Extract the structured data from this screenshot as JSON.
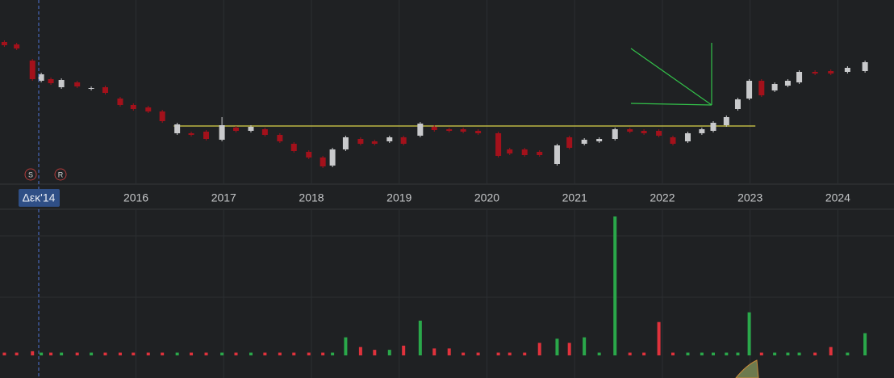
{
  "chart_data": {
    "type": "candlestick",
    "x": [
      2014.5,
      2014.64,
      2014.82,
      2014.92,
      2015.03,
      2015.15,
      2015.33,
      2015.49,
      2015.65,
      2015.82,
      2015.97,
      2016.14,
      2016.3,
      2016.47,
      2016.63,
      2016.8,
      2016.98,
      2017.14,
      2017.31,
      2017.47,
      2017.64,
      2017.8,
      2017.97,
      2018.13,
      2018.24,
      2018.39,
      2018.56,
      2018.72,
      2018.89,
      2019.05,
      2019.24,
      2019.4,
      2019.57,
      2019.73,
      2019.9,
      2020.13,
      2020.26,
      2020.43,
      2020.6,
      2020.8,
      2020.94,
      2021.11,
      2021.28,
      2021.46,
      2021.63,
      2021.79,
      2021.96,
      2022.12,
      2022.29,
      2022.45,
      2022.58,
      2022.73,
      2022.86,
      2022.99,
      2023.13,
      2023.28,
      2023.43,
      2023.56,
      2023.74,
      2023.92,
      2024.11,
      2024.31
    ],
    "open": [
      178,
      175,
      155,
      130,
      132,
      122,
      128,
      120,
      122,
      108,
      100,
      97,
      92,
      65,
      65,
      67,
      57,
      72,
      68,
      70,
      63,
      52,
      42,
      35,
      25,
      45,
      58,
      55,
      55,
      60,
      62,
      73,
      70,
      70,
      68,
      65,
      45,
      45,
      42,
      27,
      60,
      52,
      55,
      58,
      70,
      68,
      68,
      60,
      55,
      65,
      68,
      75,
      95,
      108,
      130,
      118,
      124,
      128,
      141,
      142,
      141,
      142
    ],
    "high": [
      180,
      177,
      157,
      140,
      134,
      133,
      130,
      123,
      124,
      110,
      102,
      99,
      94,
      78,
      67,
      69,
      85,
      74,
      75,
      72,
      65,
      54,
      44,
      37,
      47,
      62,
      60,
      57,
      62,
      62,
      79,
      75,
      72,
      72,
      70,
      67,
      47,
      47,
      44,
      52,
      62,
      59,
      60,
      72,
      72,
      70,
      70,
      62,
      67,
      72,
      80,
      87,
      109,
      132,
      132,
      128,
      132,
      143,
      143,
      144,
      148,
      155
    ],
    "low": [
      172,
      168,
      130,
      128,
      125,
      120,
      121,
      118,
      113,
      98,
      93,
      90,
      78,
      63,
      61,
      56,
      55,
      66,
      66,
      61,
      53,
      41,
      33,
      22,
      23,
      43,
      50,
      50,
      53,
      50,
      60,
      67,
      66,
      65,
      63,
      35,
      38,
      36,
      36,
      25,
      45,
      50,
      53,
      56,
      65,
      63,
      60,
      50,
      53,
      63,
      66,
      73,
      93,
      106,
      110,
      116,
      122,
      126,
      137,
      137,
      139,
      140
    ],
    "close": [
      174,
      170,
      132,
      138,
      127,
      131,
      123,
      121,
      115,
      100,
      95,
      92,
      80,
      76,
      63,
      58,
      75,
      68,
      73,
      63,
      55,
      43,
      35,
      24,
      45,
      60,
      52,
      52,
      60,
      52,
      77,
      69,
      68,
      67,
      65,
      37,
      40,
      38,
      38,
      50,
      47,
      57,
      58,
      70,
      67,
      65,
      62,
      52,
      65,
      70,
      78,
      85,
      107,
      130,
      112,
      126,
      130,
      141,
      139,
      139,
      146,
      153
    ],
    "volume": [
      2,
      2,
      3,
      2,
      2,
      2,
      2,
      2,
      2,
      2,
      2,
      2,
      2,
      2,
      2,
      2,
      2,
      2,
      2,
      2,
      2,
      2,
      2,
      2,
      2,
      13,
      6,
      4,
      4,
      7,
      25,
      5,
      5,
      2,
      2,
      2,
      2,
      2,
      9,
      12,
      9,
      13,
      2,
      100,
      2,
      2,
      24,
      2,
      2,
      2,
      2,
      2,
      2,
      31,
      2,
      2,
      2,
      2,
      2,
      6,
      2,
      16
    ],
    "up_color": "#c9cacc",
    "down_color": "#a3111b",
    "volume_up_color": "#2aa84a",
    "volume_down_color": "#e0323c",
    "xlim": [
      2014.45,
      2024.64
    ],
    "xticks": [
      2016,
      2017,
      2018,
      2019,
      2020,
      2021,
      2022,
      2023,
      2024
    ],
    "ylim": [
      0,
      230
    ],
    "volume_ylim": [
      0,
      100
    ],
    "level": {
      "value": 74,
      "from": 2016.43,
      "to": 2023.06,
      "color": "#d9d24a"
    },
    "crosshair_label": "Δεκ'14",
    "markers": [
      "S",
      "R"
    ],
    "grid": true
  }
}
